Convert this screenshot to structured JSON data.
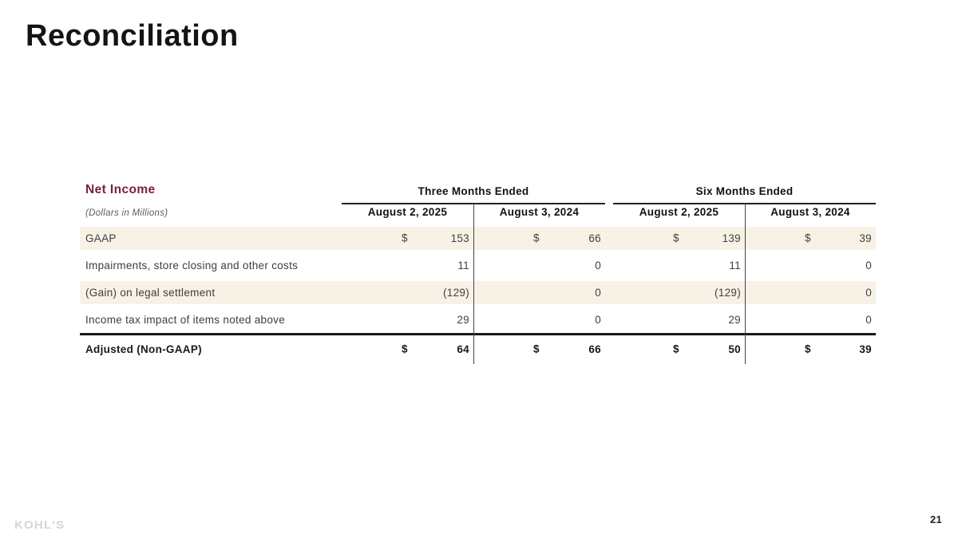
{
  "title": "Reconciliation",
  "table": {
    "section_title": "Net Income",
    "units_note": "(Dollars in Millions)",
    "groups": [
      {
        "label": "Three Months Ended",
        "columns": [
          "August 2, 2025",
          "August 3, 2024"
        ]
      },
      {
        "label": "Six Months Ended",
        "columns": [
          "August 2, 2025",
          "August 3, 2024"
        ]
      }
    ],
    "rows": [
      {
        "label": "GAAP",
        "values": [
          {
            "currency": "$",
            "amount": "153"
          },
          {
            "currency": "$",
            "amount": "66"
          },
          {
            "currency": "$",
            "amount": "139"
          },
          {
            "currency": "$",
            "amount": "39"
          }
        ],
        "shaded": true,
        "total": false
      },
      {
        "label": "Impairments, store closing and other costs",
        "values": [
          {
            "amount": "11"
          },
          {
            "amount": "0"
          },
          {
            "amount": "11"
          },
          {
            "amount": "0"
          }
        ],
        "shaded": false,
        "total": false
      },
      {
        "label": "(Gain) on legal settlement",
        "values": [
          {
            "amount": "(129)"
          },
          {
            "amount": "0"
          },
          {
            "amount": "(129)"
          },
          {
            "amount": "0"
          }
        ],
        "shaded": true,
        "total": false
      },
      {
        "label": "Income tax impact of items noted above",
        "values": [
          {
            "amount": "29"
          },
          {
            "amount": "0"
          },
          {
            "amount": "29"
          },
          {
            "amount": "0"
          }
        ],
        "shaded": false,
        "total": false
      },
      {
        "label": "Adjusted (Non-GAAP)",
        "values": [
          {
            "currency": "$",
            "amount": "64"
          },
          {
            "currency": "$",
            "amount": "66"
          },
          {
            "currency": "$",
            "amount": "50"
          },
          {
            "currency": "$",
            "amount": "39"
          }
        ],
        "shaded": false,
        "total": true
      }
    ]
  },
  "footer": {
    "logo_text": "KOHL'S",
    "page_number": "21"
  },
  "colors": {
    "accent_maroon": "#7A2138",
    "row_shade": "#F8F2E6",
    "line_black": "#1A1A1A",
    "logo_gray": "#D5D5D5"
  }
}
